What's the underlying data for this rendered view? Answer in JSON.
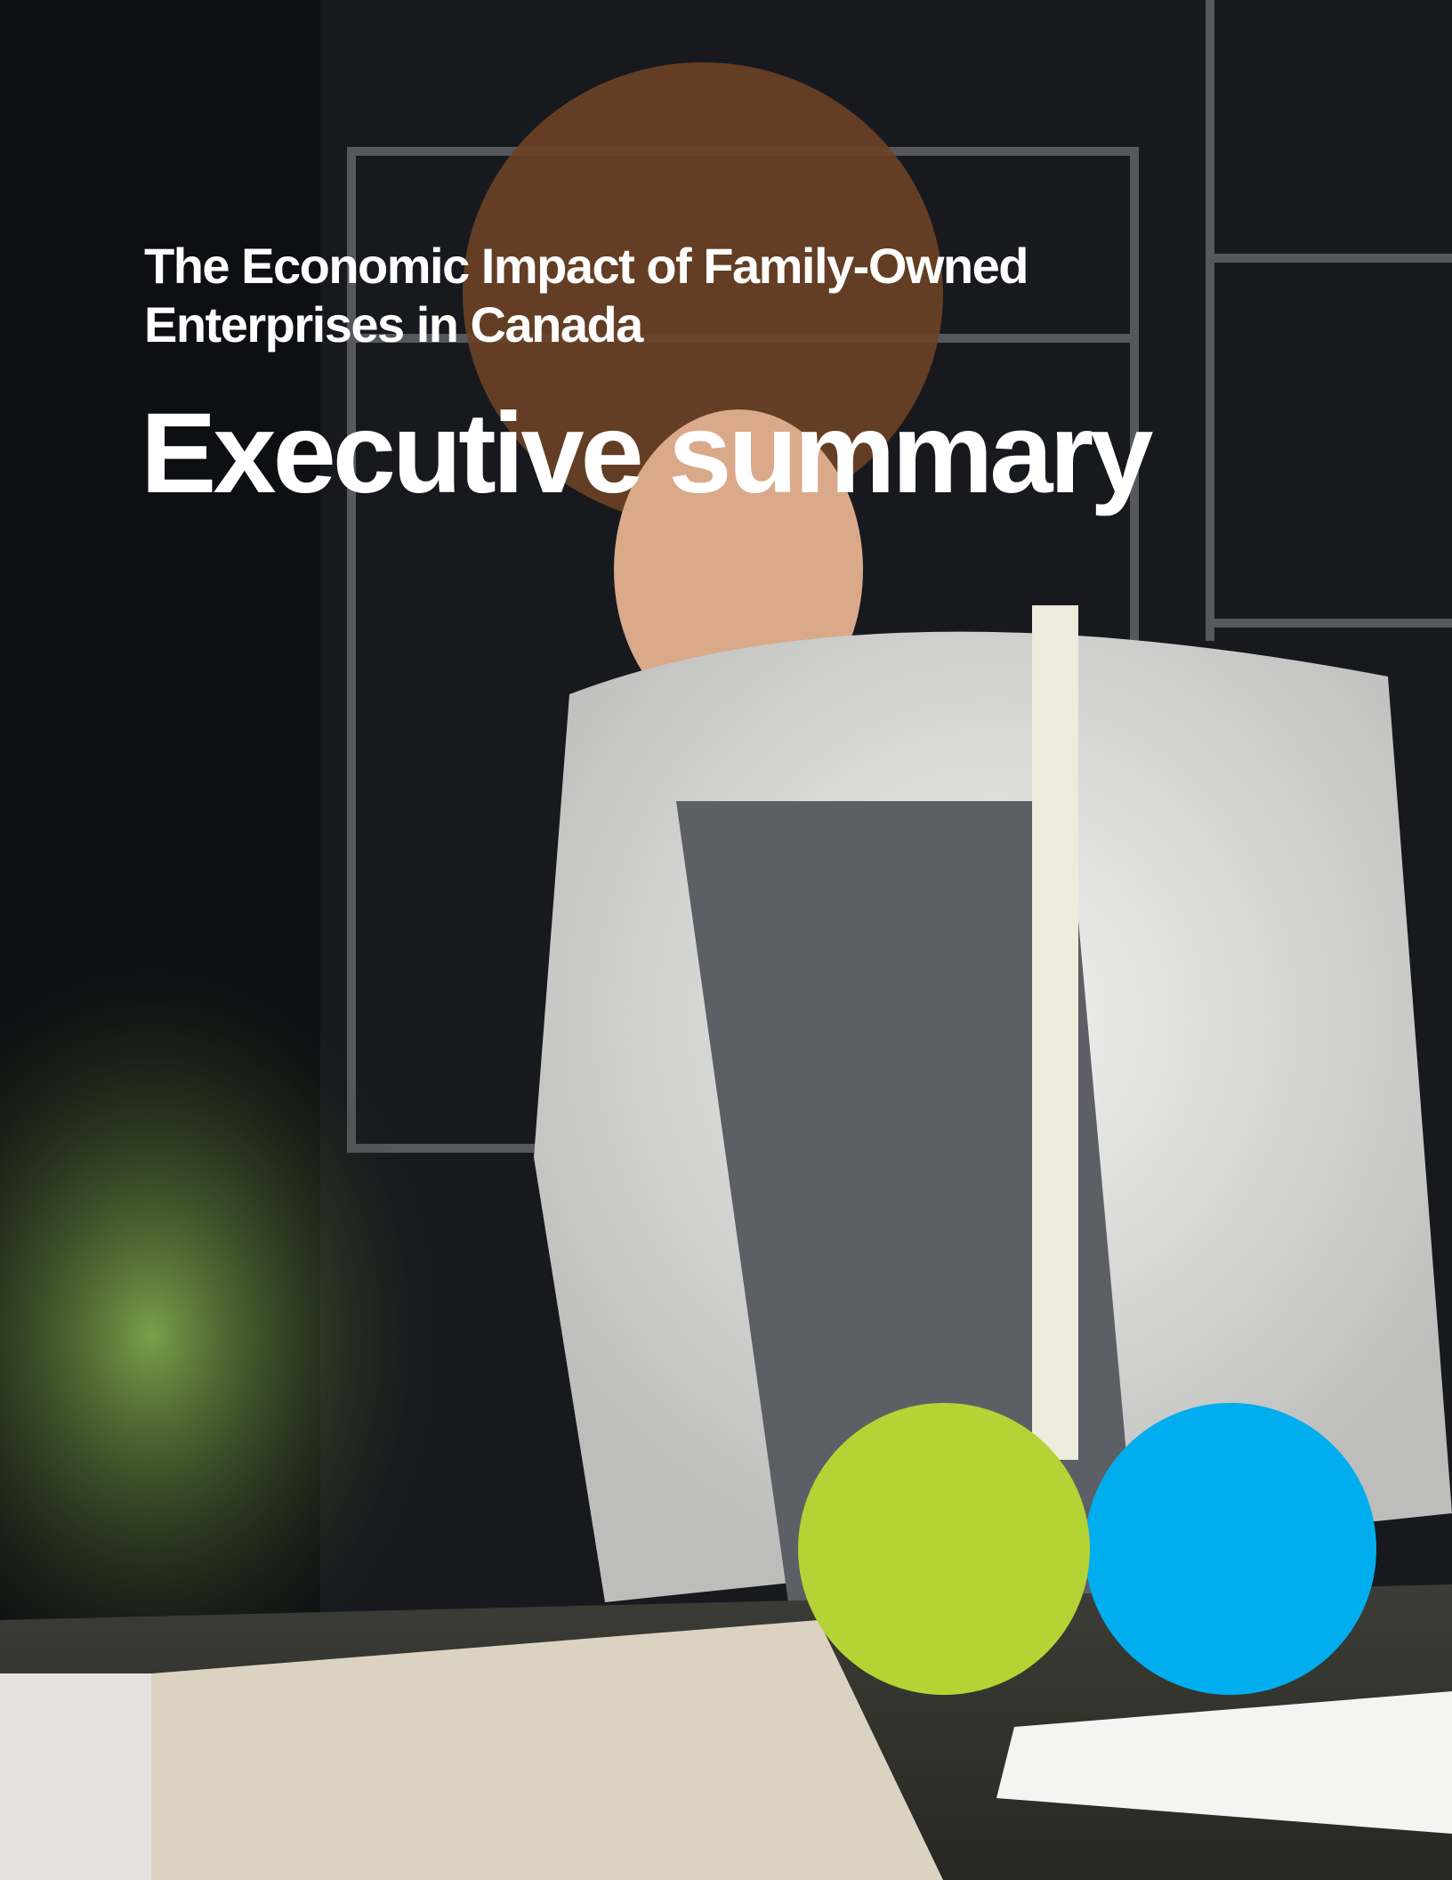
{
  "cover": {
    "title_lines": [
      "The Economic Impact of Family-Owned",
      "Enterprises in Canada"
    ],
    "heading": "Executive summary"
  }
}
